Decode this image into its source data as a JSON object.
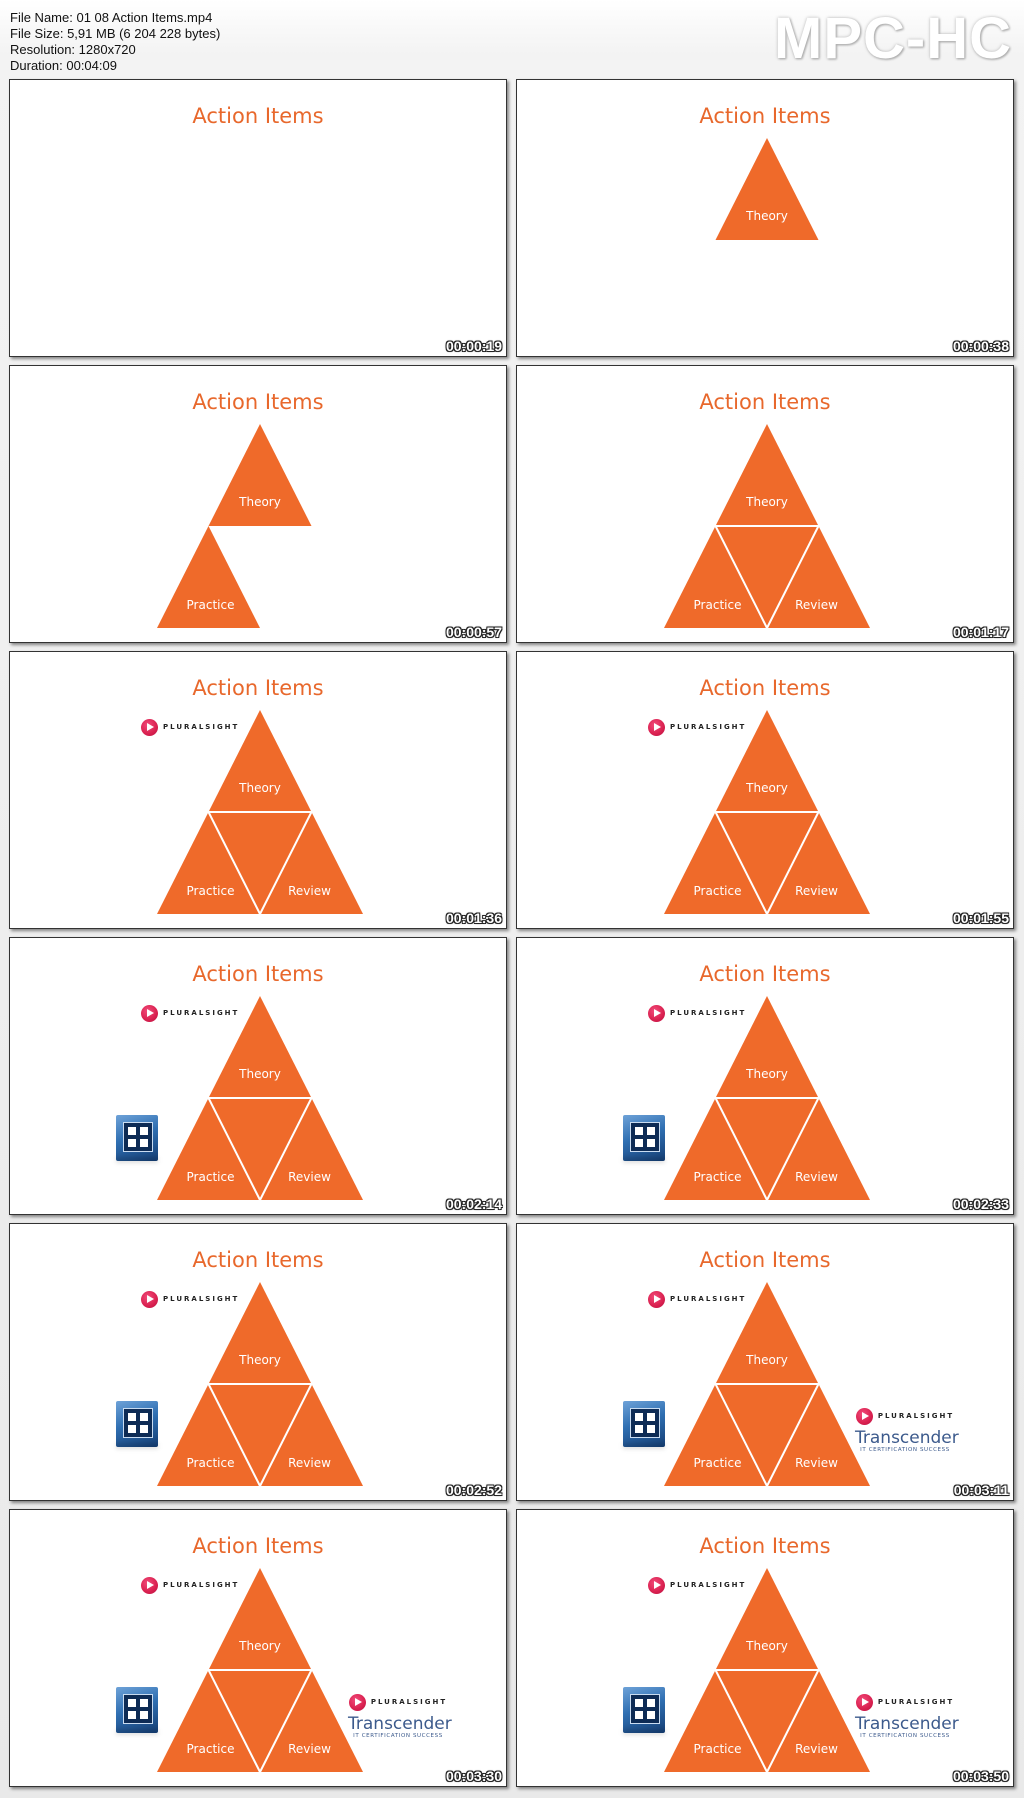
{
  "header": {
    "info": [
      "File Name: 01 08 Action Items.mp4",
      "File Size: 5,91 MB (6 204 228 bytes)",
      "Resolution: 1280x720",
      "Duration: 00:04:09"
    ],
    "logo": "MPC-HC"
  },
  "labels": {
    "slide_title": "Action Items",
    "theory": "Theory",
    "practice": "Practice",
    "review": "Review",
    "pluralsight": "PLURALSIGHT",
    "transcender": "Transcender",
    "transcender_sub": "IT CERTIFICATION SUCCESS"
  },
  "colors": {
    "accent": "#ef6a2a",
    "title": "#e8682c",
    "pluralsight": "#d9204f",
    "transcender": "#3c5a8c"
  },
  "thumbnails": [
    {
      "timestamp": "00:00:19",
      "stage": 0,
      "pluralsight": false,
      "virtualbox": false,
      "transcender": false
    },
    {
      "timestamp": "00:00:38",
      "stage": 1,
      "pluralsight": false,
      "virtualbox": false,
      "transcender": false
    },
    {
      "timestamp": "00:00:57",
      "stage": 2,
      "pluralsight": false,
      "virtualbox": false,
      "transcender": false
    },
    {
      "timestamp": "00:01:17",
      "stage": 3,
      "pluralsight": false,
      "virtualbox": false,
      "transcender": false
    },
    {
      "timestamp": "00:01:36",
      "stage": 3,
      "pluralsight": true,
      "virtualbox": false,
      "transcender": false
    },
    {
      "timestamp": "00:01:55",
      "stage": 3,
      "pluralsight": true,
      "virtualbox": false,
      "transcender": false
    },
    {
      "timestamp": "00:02:14",
      "stage": 3,
      "pluralsight": true,
      "virtualbox": true,
      "transcender": false
    },
    {
      "timestamp": "00:02:33",
      "stage": 3,
      "pluralsight": true,
      "virtualbox": true,
      "transcender": false
    },
    {
      "timestamp": "00:02:52",
      "stage": 3,
      "pluralsight": true,
      "virtualbox": true,
      "transcender": false
    },
    {
      "timestamp": "00:03:11",
      "stage": 3,
      "pluralsight": true,
      "virtualbox": true,
      "transcender": true
    },
    {
      "timestamp": "00:03:30",
      "stage": 3,
      "pluralsight": true,
      "virtualbox": true,
      "transcender": true
    },
    {
      "timestamp": "00:03:50",
      "stage": 3,
      "pluralsight": true,
      "virtualbox": true,
      "transcender": true
    }
  ]
}
